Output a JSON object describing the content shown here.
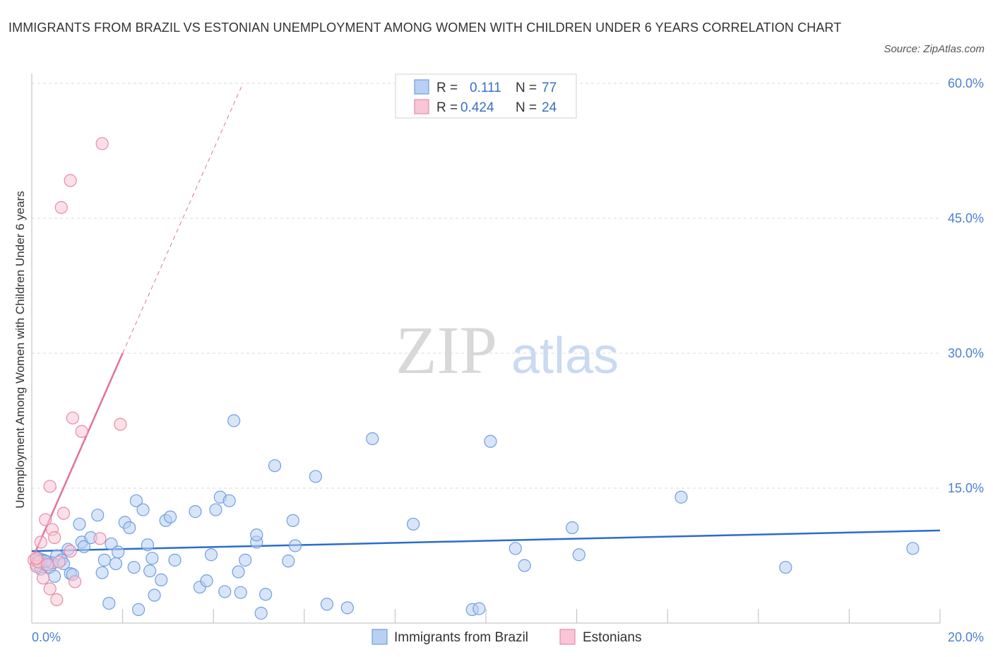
{
  "header": {
    "title": "IMMIGRANTS FROM BRAZIL VS ESTONIAN UNEMPLOYMENT AMONG WOMEN WITH CHILDREN UNDER 6 YEARS CORRELATION CHART",
    "source": "Source: ZipAtlas.com"
  },
  "watermark": {
    "zip": "ZIP",
    "atlas": "atlas"
  },
  "colors": {
    "blue": "#6f9fe0",
    "blue_fill": "#b8d0f3",
    "blue_line": "#2a6dcc",
    "pink": "#e98aa8",
    "pink_fill": "#f8c6d6",
    "pink_line": "#e0739a",
    "grid": "#d9d9d9",
    "tick_text": "#4a7fd1"
  },
  "legend": {
    "rows": [
      {
        "r_label": "R =",
        "r_value": "0.111",
        "n_label": "N =",
        "n_value": "77",
        "series": "brazil"
      },
      {
        "r_label": "R =",
        "r_value": "0.424",
        "n_label": "N =",
        "n_value": "24",
        "series": "estonian"
      }
    ]
  },
  "chart_data": {
    "type": "scatter",
    "title": "IMMIGRANTS FROM BRAZIL VS ESTONIAN UNEMPLOYMENT AMONG WOMEN WITH CHILDREN UNDER 6 YEARS CORRELATION CHART",
    "xlabel": "",
    "ylabel": "Unemployment Among Women with Children Under 6 years",
    "xlim": [
      0,
      20
    ],
    "ylim": [
      0,
      60
    ],
    "x_tick_labels": [
      "0.0%",
      "20.0%"
    ],
    "y_ticks": [
      15,
      30,
      45,
      60
    ],
    "y_tick_labels": [
      "15.0%",
      "30.0%",
      "45.0%",
      "60.0%"
    ],
    "grid": true,
    "legend_position": "top-center",
    "series": [
      {
        "name": "Immigrants from Brazil",
        "key": "brazil",
        "R": 0.111,
        "N": 77,
        "trend": {
          "x0": 0,
          "y0": 8.0,
          "x1": 20,
          "y1": 10.3
        },
        "points": [
          [
            0.1,
            6.5
          ],
          [
            0.15,
            7.2
          ],
          [
            0.2,
            6.0
          ],
          [
            0.25,
            7.0
          ],
          [
            0.3,
            6.5
          ],
          [
            0.35,
            6.8
          ],
          [
            0.4,
            6.2
          ],
          [
            0.5,
            5.2
          ],
          [
            0.55,
            7.5
          ],
          [
            0.65,
            7.0
          ],
          [
            0.7,
            6.6
          ],
          [
            0.8,
            8.2
          ],
          [
            0.85,
            5.5
          ],
          [
            0.9,
            5.4
          ],
          [
            1.05,
            11.0
          ],
          [
            1.1,
            9.0
          ],
          [
            1.15,
            8.5
          ],
          [
            1.3,
            9.5
          ],
          [
            1.45,
            12.0
          ],
          [
            1.55,
            5.6
          ],
          [
            1.6,
            7.0
          ],
          [
            1.7,
            2.2
          ],
          [
            1.75,
            8.8
          ],
          [
            1.85,
            6.6
          ],
          [
            1.9,
            7.9
          ],
          [
            2.05,
            11.2
          ],
          [
            2.15,
            10.6
          ],
          [
            2.25,
            6.2
          ],
          [
            2.3,
            13.6
          ],
          [
            2.35,
            1.5
          ],
          [
            2.45,
            12.6
          ],
          [
            2.55,
            8.7
          ],
          [
            2.6,
            5.8
          ],
          [
            2.65,
            7.2
          ],
          [
            2.7,
            3.1
          ],
          [
            2.85,
            4.8
          ],
          [
            2.95,
            11.4
          ],
          [
            3.05,
            11.8
          ],
          [
            3.15,
            7.0
          ],
          [
            3.6,
            12.4
          ],
          [
            3.7,
            4.0
          ],
          [
            3.85,
            4.7
          ],
          [
            3.95,
            7.6
          ],
          [
            4.05,
            12.6
          ],
          [
            4.15,
            14.0
          ],
          [
            4.25,
            3.5
          ],
          [
            4.35,
            13.6
          ],
          [
            4.45,
            22.5
          ],
          [
            4.55,
            5.7
          ],
          [
            4.6,
            3.4
          ],
          [
            4.7,
            7.0
          ],
          [
            4.95,
            9.0
          ],
          [
            4.95,
            9.8
          ],
          [
            5.05,
            1.1
          ],
          [
            5.15,
            3.2
          ],
          [
            5.35,
            17.5
          ],
          [
            5.65,
            6.9
          ],
          [
            5.75,
            11.4
          ],
          [
            5.8,
            8.6
          ],
          [
            6.25,
            16.3
          ],
          [
            6.5,
            2.1
          ],
          [
            6.95,
            1.7
          ],
          [
            7.5,
            20.5
          ],
          [
            8.4,
            11.0
          ],
          [
            9.7,
            1.5
          ],
          [
            9.85,
            1.6
          ],
          [
            10.1,
            20.2
          ],
          [
            10.65,
            8.3
          ],
          [
            10.85,
            6.4
          ],
          [
            11.9,
            10.6
          ],
          [
            12.05,
            7.6
          ],
          [
            14.3,
            14.0
          ],
          [
            16.6,
            6.2
          ],
          [
            19.4,
            8.3
          ],
          [
            0.45,
            6.7
          ],
          [
            0.2,
            7.0
          ],
          [
            0.3,
            6.9
          ]
        ]
      },
      {
        "name": "Estonians",
        "key": "estonian",
        "R": 0.424,
        "N": 24,
        "trend_solid": {
          "x0": 0,
          "y0": 7.0,
          "x1": 2.0,
          "y1": 30.0
        },
        "trend_dashed": {
          "x0": 2.0,
          "y0": 30.0,
          "x1": 4.65,
          "y1": 60.0
        },
        "points": [
          [
            0.05,
            7.0
          ],
          [
            0.1,
            6.3
          ],
          [
            0.15,
            6.8
          ],
          [
            0.2,
            9.0
          ],
          [
            0.25,
            5.0
          ],
          [
            0.3,
            11.5
          ],
          [
            0.35,
            6.5
          ],
          [
            0.4,
            3.8
          ],
          [
            0.4,
            15.2
          ],
          [
            0.45,
            10.4
          ],
          [
            0.5,
            9.5
          ],
          [
            0.55,
            2.6
          ],
          [
            0.6,
            6.8
          ],
          [
            0.7,
            12.2
          ],
          [
            0.85,
            8.0
          ],
          [
            0.9,
            22.8
          ],
          [
            0.95,
            4.6
          ],
          [
            1.1,
            21.3
          ],
          [
            1.5,
            9.4
          ],
          [
            1.95,
            22.1
          ],
          [
            0.65,
            46.2
          ],
          [
            0.85,
            49.2
          ],
          [
            1.55,
            53.3
          ],
          [
            0.1,
            7.2
          ]
        ]
      }
    ]
  },
  "bottom_legend": {
    "items": [
      {
        "label": "Immigrants from Brazil",
        "series": "brazil"
      },
      {
        "label": "Estonians",
        "series": "estonian"
      }
    ]
  }
}
